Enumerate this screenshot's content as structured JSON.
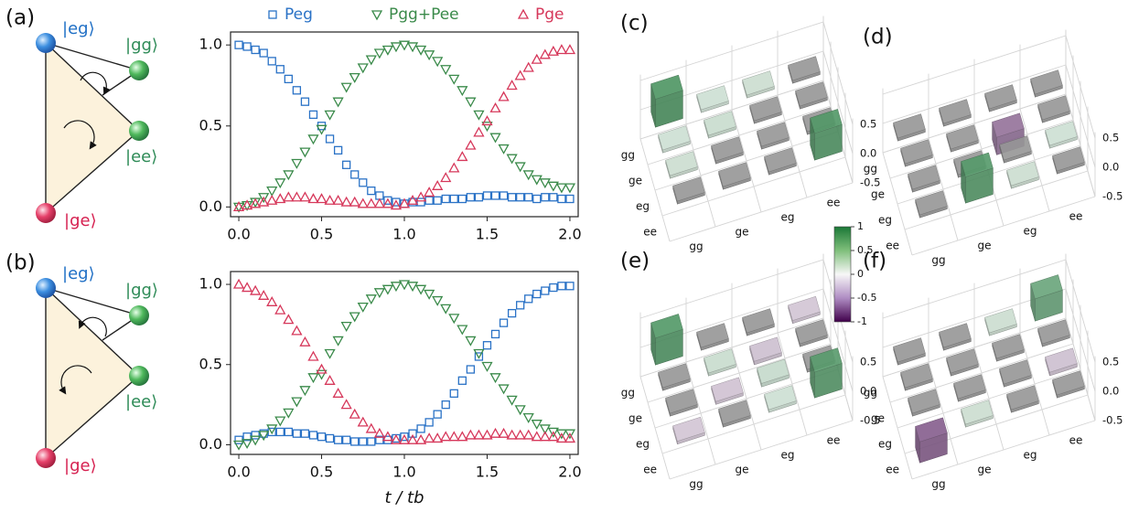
{
  "diagrams": [
    {
      "label": "(a)",
      "states": [
        "|eg⟩",
        "|gg⟩",
        "|ee⟩",
        "|ge⟩"
      ]
    },
    {
      "label": "(b)",
      "states": [
        "|eg⟩",
        "|gg⟩",
        "|ee⟩",
        "|ge⟩"
      ]
    }
  ],
  "chart_data": [
    {
      "type": "scatter",
      "x": [
        0,
        0.05,
        0.1,
        0.15,
        0.2,
        0.25,
        0.3,
        0.35,
        0.4,
        0.45,
        0.5,
        0.55,
        0.6,
        0.65,
        0.7,
        0.75,
        0.8,
        0.85,
        0.9,
        0.95,
        1,
        1.05,
        1.1,
        1.15,
        1.2,
        1.25,
        1.3,
        1.35,
        1.4,
        1.45,
        1.5,
        1.55,
        1.6,
        1.65,
        1.7,
        1.75,
        1.8,
        1.85,
        1.9,
        1.95,
        2
      ],
      "xlim": [
        -0.05,
        2.05
      ],
      "ylim": [
        -0.06,
        1.08
      ],
      "xticks": [
        {
          "value": 0,
          "label": "0.0"
        },
        0.5,
        {
          "value": 1,
          "label": "1.0"
        },
        1.5,
        {
          "value": 2,
          "label": "2.0"
        }
      ],
      "yticks": [
        {
          "value": 0,
          "label": "0.0"
        },
        0.5,
        {
          "value": 1,
          "label": "1.0"
        }
      ],
      "legend": "top",
      "series": [
        {
          "name": "Peg",
          "color": "#2a72c6",
          "marker": "square",
          "values": [
            1.0,
            0.99,
            0.97,
            0.95,
            0.9,
            0.85,
            0.79,
            0.72,
            0.65,
            0.57,
            0.5,
            0.42,
            0.35,
            0.26,
            0.2,
            0.15,
            0.1,
            0.07,
            0.04,
            0.03,
            0.02,
            0.03,
            0.03,
            0.04,
            0.04,
            0.05,
            0.05,
            0.05,
            0.06,
            0.06,
            0.07,
            0.07,
            0.07,
            0.06,
            0.06,
            0.06,
            0.05,
            0.06,
            0.06,
            0.05,
            0.05
          ]
        },
        {
          "name": "Pgg+Pee",
          "color": "#3a8a4a",
          "marker": "triangle-down",
          "values": [
            0.0,
            0.01,
            0.03,
            0.06,
            0.1,
            0.15,
            0.2,
            0.27,
            0.34,
            0.42,
            0.48,
            0.57,
            0.65,
            0.74,
            0.8,
            0.86,
            0.91,
            0.95,
            0.97,
            0.99,
            1.0,
            0.99,
            0.97,
            0.94,
            0.9,
            0.85,
            0.79,
            0.72,
            0.65,
            0.57,
            0.5,
            0.43,
            0.36,
            0.3,
            0.25,
            0.2,
            0.17,
            0.15,
            0.13,
            0.12,
            0.12
          ]
        },
        {
          "name": "Pge",
          "color": "#d6375a",
          "marker": "triangle-up",
          "values": [
            0.0,
            0.01,
            0.02,
            0.03,
            0.04,
            0.05,
            0.06,
            0.06,
            0.06,
            0.05,
            0.05,
            0.04,
            0.04,
            0.03,
            0.03,
            0.02,
            0.02,
            0.02,
            0.02,
            0.01,
            0.02,
            0.04,
            0.06,
            0.09,
            0.13,
            0.18,
            0.24,
            0.31,
            0.38,
            0.46,
            0.53,
            0.61,
            0.68,
            0.75,
            0.81,
            0.86,
            0.91,
            0.94,
            0.96,
            0.97,
            0.97
          ]
        }
      ]
    },
    {
      "type": "scatter",
      "x": [
        0,
        0.05,
        0.1,
        0.15,
        0.2,
        0.25,
        0.3,
        0.35,
        0.4,
        0.45,
        0.5,
        0.55,
        0.6,
        0.65,
        0.7,
        0.75,
        0.8,
        0.85,
        0.9,
        0.95,
        1,
        1.05,
        1.1,
        1.15,
        1.2,
        1.25,
        1.3,
        1.35,
        1.4,
        1.45,
        1.5,
        1.55,
        1.6,
        1.65,
        1.7,
        1.75,
        1.8,
        1.85,
        1.9,
        1.95,
        2
      ],
      "xlim": [
        -0.05,
        2.05
      ],
      "ylim": [
        -0.06,
        1.08
      ],
      "xticks": [
        {
          "value": 0,
          "label": "0.0"
        },
        0.5,
        {
          "value": 1,
          "label": "1.0"
        },
        1.5,
        {
          "value": 2,
          "label": "2.0"
        }
      ],
      "yticks": [
        {
          "value": 0,
          "label": "0.0"
        },
        0.5,
        {
          "value": 1,
          "label": "1.0"
        }
      ],
      "xlabel": "t / tb",
      "series": [
        {
          "color": "#2a72c6",
          "marker": "square",
          "values": [
            0.03,
            0.05,
            0.06,
            0.07,
            0.08,
            0.08,
            0.08,
            0.07,
            0.07,
            0.06,
            0.05,
            0.04,
            0.03,
            0.03,
            0.02,
            0.02,
            0.02,
            0.03,
            0.03,
            0.04,
            0.05,
            0.07,
            0.1,
            0.14,
            0.19,
            0.25,
            0.32,
            0.4,
            0.47,
            0.55,
            0.62,
            0.69,
            0.76,
            0.82,
            0.87,
            0.91,
            0.94,
            0.96,
            0.98,
            0.99,
            0.99
          ]
        },
        {
          "color": "#3a8a4a",
          "marker": "triangle-down",
          "values": [
            0.0,
            0.01,
            0.03,
            0.06,
            0.1,
            0.15,
            0.2,
            0.27,
            0.34,
            0.42,
            0.44,
            0.57,
            0.65,
            0.74,
            0.8,
            0.86,
            0.91,
            0.95,
            0.97,
            0.99,
            1.0,
            0.99,
            0.97,
            0.94,
            0.9,
            0.85,
            0.79,
            0.72,
            0.65,
            0.57,
            0.49,
            0.42,
            0.35,
            0.28,
            0.22,
            0.17,
            0.13,
            0.1,
            0.08,
            0.07,
            0.07
          ]
        },
        {
          "color": "#d6375a",
          "marker": "triangle-up",
          "values": [
            1.0,
            0.98,
            0.96,
            0.93,
            0.89,
            0.84,
            0.78,
            0.71,
            0.64,
            0.55,
            0.47,
            0.4,
            0.32,
            0.25,
            0.19,
            0.14,
            0.1,
            0.07,
            0.05,
            0.03,
            0.03,
            0.03,
            0.03,
            0.04,
            0.04,
            0.05,
            0.05,
            0.05,
            0.06,
            0.06,
            0.06,
            0.07,
            0.07,
            0.06,
            0.06,
            0.06,
            0.05,
            0.05,
            0.05,
            0.04,
            0.04
          ]
        }
      ]
    },
    {
      "type": "bar3d",
      "title": "(c)",
      "rows": [
        "gg",
        "ge",
        "eg",
        "ee"
      ],
      "cols": [
        "gg",
        "ge",
        "eg",
        "ee"
      ],
      "zticks": [
        0.5,
        {
          "value": 0,
          "label": "0.0"
        },
        -0.5
      ],
      "values": [
        [
          0.48,
          0.03,
          0.04,
          0
        ],
        [
          0.03,
          0.05,
          0.02,
          0
        ],
        [
          0.04,
          0.02,
          0,
          0
        ],
        [
          0,
          0,
          0,
          0.46
        ]
      ]
    },
    {
      "type": "bar3d",
      "title": "(d)",
      "rows": [
        "gg",
        "ge",
        "eg",
        "ee"
      ],
      "cols": [
        "gg",
        "ge",
        "eg",
        "ee"
      ],
      "zticks": [
        0.5,
        {
          "value": 0,
          "label": "0.0"
        },
        -0.5
      ],
      "values": [
        [
          0,
          0,
          0,
          0
        ],
        [
          0,
          0,
          -0.3,
          0
        ],
        [
          0.02,
          0,
          0,
          0.03
        ],
        [
          0,
          0.45,
          0.04,
          0
        ]
      ]
    },
    {
      "type": "bar3d",
      "title": "(e)",
      "rows": [
        "gg",
        "ge",
        "eg",
        "ee"
      ],
      "cols": [
        "gg",
        "ge",
        "eg",
        "ee"
      ],
      "zticks": [
        0.5,
        {
          "value": 0,
          "label": "0.0"
        },
        -0.5
      ],
      "values": [
        [
          0.46,
          0,
          0,
          -0.04
        ],
        [
          0,
          0.05,
          -0.06,
          0
        ],
        [
          0,
          -0.05,
          0.06,
          0
        ],
        [
          -0.04,
          0,
          0.03,
          0.44
        ]
      ]
    },
    {
      "type": "bar3d",
      "title": "(f)",
      "rows": [
        "gg",
        "ge",
        "eg",
        "ee"
      ],
      "cols": [
        "gg",
        "ge",
        "eg",
        "ee"
      ],
      "zticks": [
        0.5,
        {
          "value": 0,
          "label": "0.0"
        },
        -0.5
      ],
      "values": [
        [
          0,
          0,
          0.04,
          0.38
        ],
        [
          0,
          0,
          0,
          0
        ],
        [
          0,
          0,
          0,
          -0.06
        ],
        [
          -0.36,
          0.04,
          0,
          0
        ]
      ]
    }
  ],
  "colorbar": {
    "lim": [
      -1,
      1
    ],
    "ticks": [
      1,
      0.5,
      0,
      -0.5,
      -1
    ]
  }
}
